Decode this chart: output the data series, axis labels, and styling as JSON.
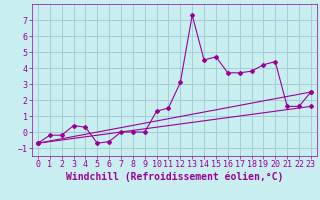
{
  "title": "",
  "xlabel": "Windchill (Refroidissement éolien,°C)",
  "background_color": "#c8eef0",
  "grid_color": "#a0c8d0",
  "line_color": "#990099",
  "xlim": [
    -0.5,
    23.5
  ],
  "ylim": [
    -1.5,
    8.0
  ],
  "xticks": [
    0,
    1,
    2,
    3,
    4,
    5,
    6,
    7,
    8,
    9,
    10,
    11,
    12,
    13,
    14,
    15,
    16,
    17,
    18,
    19,
    20,
    21,
    22,
    23
  ],
  "yticks": [
    -1,
    0,
    1,
    2,
    3,
    4,
    5,
    6,
    7
  ],
  "series1_x": [
    0,
    1,
    2,
    3,
    4,
    5,
    6,
    7,
    8,
    9,
    10,
    11,
    12,
    13,
    14,
    15,
    16,
    17,
    18,
    19,
    20,
    21,
    22,
    23
  ],
  "series1_y": [
    -0.7,
    -0.2,
    -0.2,
    0.4,
    0.3,
    -0.7,
    -0.6,
    0.0,
    0.0,
    0.0,
    1.3,
    1.5,
    3.1,
    7.3,
    4.5,
    4.7,
    3.7,
    3.7,
    3.8,
    4.2,
    4.4,
    1.6,
    1.6,
    2.5
  ],
  "series2_x": [
    0,
    23
  ],
  "series2_y": [
    -0.7,
    2.5
  ],
  "series3_x": [
    0,
    23
  ],
  "series3_y": [
    -0.7,
    1.6
  ],
  "font_color": "#990099",
  "tick_fontsize": 6,
  "label_fontsize": 7
}
